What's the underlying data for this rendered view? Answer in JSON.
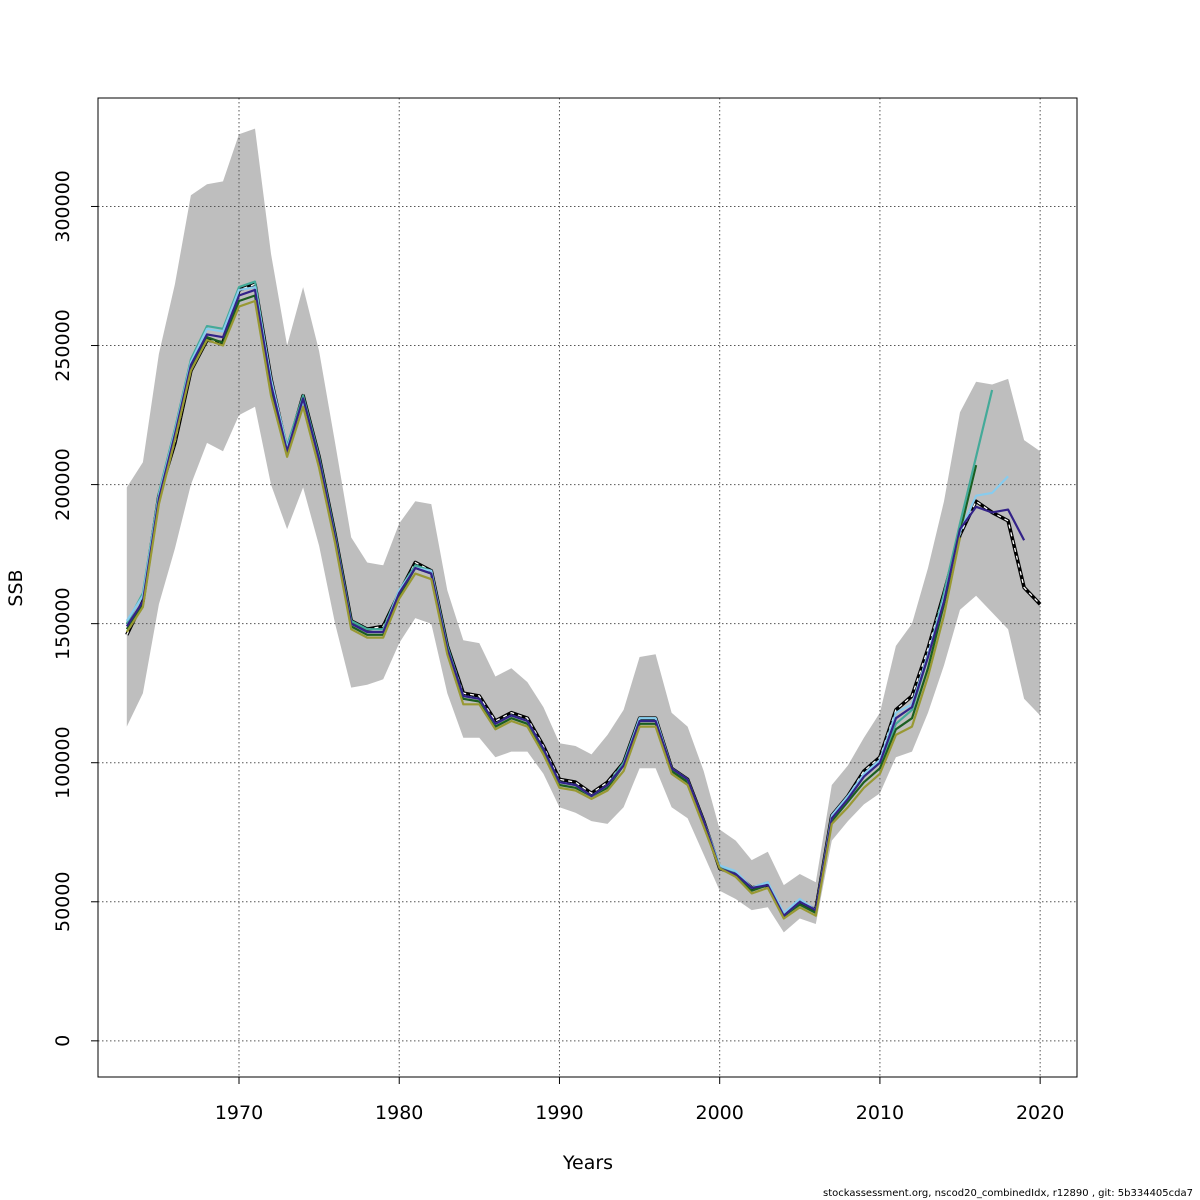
{
  "chart_data": {
    "type": "line",
    "title": "",
    "xlabel": "Years",
    "ylabel": "SSB",
    "xlim": [
      1961.2,
      2022.3
    ],
    "ylim": [
      -13000,
      339000
    ],
    "x_ticks": [
      1970,
      1980,
      1990,
      2000,
      2010,
      2020
    ],
    "y_ticks": [
      0,
      50000,
      100000,
      150000,
      200000,
      250000,
      300000
    ],
    "y_tick_labels": [
      "0",
      "50000",
      "100000",
      "150000",
      "200000",
      "250000",
      "300000"
    ],
    "grid": true,
    "legend": "none",
    "footer": "stockassessment.org, nscod20_combinedIdx, r12890 , git: 5b334405cda7",
    "band": {
      "color": "#bebebe",
      "x": [
        1963,
        1964,
        1965,
        1966,
        1967,
        1968,
        1969,
        1970,
        1971,
        1972,
        1973,
        1974,
        1975,
        1976,
        1977,
        1978,
        1979,
        1980,
        1981,
        1982,
        1983,
        1984,
        1985,
        1986,
        1987,
        1988,
        1989,
        1990,
        1991,
        1992,
        1993,
        1994,
        1995,
        1996,
        1997,
        1998,
        1999,
        2000,
        2001,
        2002,
        2003,
        2004,
        2005,
        2006,
        2007,
        2008,
        2009,
        2010,
        2011,
        2012,
        2013,
        2014,
        2015,
        2016,
        2017,
        2018,
        2019,
        2020
      ],
      "upper": [
        199000,
        208000,
        247000,
        272000,
        304000,
        308000,
        309000,
        326000,
        328000,
        283000,
        250000,
        271000,
        248000,
        215000,
        181000,
        172000,
        171000,
        186000,
        194000,
        193000,
        162000,
        144000,
        143000,
        131000,
        134000,
        129000,
        120000,
        107000,
        106000,
        103000,
        110000,
        119000,
        138000,
        139000,
        118000,
        113000,
        97000,
        76000,
        72000,
        65000,
        68000,
        56000,
        60000,
        57000,
        92000,
        99000,
        109000,
        118000,
        142000,
        150000,
        170000,
        194000,
        226000,
        237000,
        236000,
        238000,
        216000,
        212000
      ],
      "lower": [
        113000,
        125000,
        157000,
        177000,
        200000,
        215000,
        212000,
        225000,
        228000,
        200000,
        184000,
        199000,
        178000,
        150000,
        127000,
        128000,
        130000,
        143000,
        152000,
        150000,
        125000,
        109000,
        109000,
        102000,
        104000,
        104000,
        96000,
        84000,
        82000,
        79000,
        78000,
        84000,
        98000,
        98000,
        84000,
        80000,
        67000,
        54000,
        51000,
        47000,
        48000,
        39000,
        44000,
        42000,
        72000,
        79000,
        85000,
        89000,
        102000,
        104000,
        118000,
        135000,
        155000,
        160000,
        154000,
        148000,
        123000,
        117000
      ]
    },
    "series": [
      {
        "color": "#000000",
        "dashed": true,
        "width": 2.2,
        "x": [
          1963,
          1964,
          1965,
          1966,
          1967,
          1968,
          1969,
          1970,
          1971,
          1972,
          1973,
          1974,
          1975,
          1976,
          1977,
          1978,
          1979,
          1980,
          1981,
          1982,
          1983,
          1984,
          1985,
          1986,
          1987,
          1988,
          1989,
          1990,
          1991,
          1992,
          1993,
          1994,
          1995,
          1996,
          1997,
          1998,
          1999,
          2000,
          2001,
          2002,
          2003,
          2004,
          2005,
          2006,
          2007,
          2008,
          2009,
          2010,
          2011,
          2012,
          2013,
          2014,
          2015,
          2016,
          2017,
          2018,
          2019,
          2020
        ],
        "values": [
          146000,
          158000,
          196000,
          215000,
          241000,
          252000,
          251000,
          270000,
          272000,
          238000,
          212000,
          232000,
          210000,
          182000,
          151000,
          148000,
          149000,
          161000,
          172000,
          169000,
          142000,
          125000,
          124000,
          115000,
          118000,
          116000,
          106000,
          94000,
          93000,
          89000,
          93000,
          100000,
          116000,
          116000,
          98000,
          94000,
          79000,
          62000,
          60000,
          55000,
          56000,
          45000,
          50000,
          47000,
          81000,
          88000,
          97000,
          102000,
          119000,
          124000,
          141000,
          161000,
          182000,
          194000,
          190000,
          187000,
          163000,
          157000
        ]
      },
      {
        "color": "#1b5e20",
        "dashed": false,
        "width": 2.2,
        "x": [
          1963,
          1964,
          1965,
          1966,
          1967,
          1968,
          1969,
          1970,
          1971,
          1972,
          1973,
          1974,
          1975,
          1976,
          1977,
          1978,
          1979,
          1980,
          1981,
          1982,
          1983,
          1984,
          1985,
          1986,
          1987,
          1988,
          1989,
          1990,
          1991,
          1992,
          1993,
          1994,
          1995,
          1996,
          1997,
          1998,
          1999,
          2000,
          2001,
          2002,
          2003,
          2004,
          2005,
          2006,
          2007,
          2008,
          2009,
          2010,
          2011,
          2012,
          2013,
          2014,
          2015,
          2016
        ],
        "values": [
          148000,
          157000,
          194000,
          217000,
          242000,
          253000,
          251000,
          266000,
          268000,
          234000,
          211000,
          230000,
          208000,
          180000,
          149000,
          146000,
          146000,
          160000,
          170000,
          168000,
          141000,
          123000,
          122000,
          113000,
          116000,
          114000,
          104000,
          92000,
          91000,
          88000,
          91000,
          99000,
          114000,
          114000,
          97000,
          93000,
          78000,
          62000,
          60000,
          54000,
          56000,
          45000,
          49000,
          46000,
          79000,
          86000,
          93000,
          98000,
          112000,
          116000,
          134000,
          157000,
          183000,
          207000
        ]
      },
      {
        "color": "#44aa99",
        "dashed": false,
        "width": 2.2,
        "x": [
          1963,
          1964,
          1965,
          1966,
          1967,
          1968,
          1969,
          1970,
          1971,
          1972,
          1973,
          1974,
          1975,
          1976,
          1977,
          1978,
          1979,
          1980,
          1981,
          1982,
          1983,
          1984,
          1985,
          1986,
          1987,
          1988,
          1989,
          1990,
          1991,
          1992,
          1993,
          1994,
          1995,
          1996,
          1997,
          1998,
          1999,
          2000,
          2001,
          2002,
          2003,
          2004,
          2005,
          2006,
          2007,
          2008,
          2009,
          2010,
          2011,
          2012,
          2013,
          2014,
          2015,
          2016,
          2017
        ],
        "values": [
          150000,
          161000,
          197000,
          220000,
          245000,
          257000,
          256000,
          271000,
          273000,
          237000,
          214000,
          232000,
          210000,
          182000,
          151000,
          148000,
          148000,
          162000,
          171000,
          169000,
          142000,
          124000,
          123000,
          114000,
          117000,
          115000,
          105000,
          93000,
          92000,
          88000,
          92000,
          100000,
          116000,
          116000,
          98000,
          94000,
          79000,
          63000,
          60000,
          55000,
          57000,
          45000,
          50000,
          47000,
          80000,
          87000,
          95000,
          100000,
          114000,
          119000,
          138000,
          161000,
          186000,
          210000,
          234000
        ]
      },
      {
        "color": "#88ccee",
        "dashed": false,
        "width": 2.2,
        "x": [
          1963,
          1964,
          1965,
          1966,
          1967,
          1968,
          1969,
          1970,
          1971,
          1972,
          1973,
          1974,
          1975,
          1976,
          1977,
          1978,
          1979,
          1980,
          1981,
          1982,
          1983,
          1984,
          1985,
          1986,
          1987,
          1988,
          1989,
          1990,
          1991,
          1992,
          1993,
          1994,
          1995,
          1996,
          1997,
          1998,
          1999,
          2000,
          2001,
          2002,
          2003,
          2004,
          2005,
          2006,
          2007,
          2008,
          2009,
          2010,
          2011,
          2012,
          2013,
          2014,
          2015,
          2016,
          2017,
          2018
        ],
        "values": [
          151000,
          160000,
          196000,
          219000,
          244000,
          256000,
          255000,
          270000,
          271000,
          238000,
          213000,
          230000,
          209000,
          181000,
          150000,
          147000,
          147000,
          162000,
          170000,
          169000,
          141000,
          124000,
          123000,
          114000,
          117000,
          115000,
          105000,
          93000,
          92000,
          88000,
          92000,
          99000,
          116000,
          116000,
          98000,
          94000,
          79000,
          63000,
          61000,
          55000,
          57000,
          46000,
          51000,
          47000,
          81000,
          88000,
          96000,
          101000,
          118000,
          121000,
          139000,
          159000,
          183000,
          196000,
          197000,
          203000
        ]
      },
      {
        "color": "#332288",
        "dashed": false,
        "width": 2.2,
        "x": [
          1963,
          1964,
          1965,
          1966,
          1967,
          1968,
          1969,
          1970,
          1971,
          1972,
          1973,
          1974,
          1975,
          1976,
          1977,
          1978,
          1979,
          1980,
          1981,
          1982,
          1983,
          1984,
          1985,
          1986,
          1987,
          1988,
          1989,
          1990,
          1991,
          1992,
          1993,
          1994,
          1995,
          1996,
          1997,
          1998,
          1999,
          2000,
          2001,
          2002,
          2003,
          2004,
          2005,
          2006,
          2007,
          2008,
          2009,
          2010,
          2011,
          2012,
          2013,
          2014,
          2015,
          2016,
          2017,
          2018,
          2019
        ],
        "values": [
          149000,
          158000,
          195000,
          218000,
          243000,
          254000,
          253000,
          268000,
          270000,
          236000,
          212000,
          231000,
          209000,
          181000,
          150000,
          147000,
          147000,
          161000,
          170000,
          168000,
          141000,
          124000,
          123000,
          114000,
          117000,
          115000,
          105000,
          93000,
          92000,
          88000,
          92000,
          99000,
          115000,
          115000,
          98000,
          94000,
          79000,
          62000,
          60000,
          55000,
          56000,
          45000,
          50000,
          47000,
          80000,
          87000,
          95000,
          100000,
          116000,
          120000,
          138000,
          158000,
          184000,
          192000,
          190000,
          191000,
          180000
        ]
      },
      {
        "color": "#999933",
        "dashed": false,
        "width": 2.2,
        "x": [
          1963,
          1964,
          1965,
          1966,
          1967,
          1968,
          1969,
          1970,
          1971,
          1972,
          1973,
          1974,
          1975,
          1976,
          1977,
          1978,
          1979,
          1980,
          1981,
          1982,
          1983,
          1984,
          1985,
          1986,
          1987,
          1988,
          1989,
          1990,
          1991,
          1992,
          1993,
          1994,
          1995,
          1996,
          1997,
          1998,
          1999,
          2000,
          2001,
          2002,
          2003,
          2004,
          2005,
          2006,
          2007,
          2008,
          2009,
          2010,
          2011,
          2012,
          2013,
          2014,
          2015
        ],
        "values": [
          147000,
          156000,
          193000,
          216000,
          241000,
          252000,
          250000,
          264000,
          266000,
          232000,
          210000,
          228000,
          206000,
          179000,
          148000,
          145000,
          145000,
          159000,
          168000,
          166000,
          139000,
          121000,
          121000,
          112000,
          115000,
          113000,
          103000,
          91000,
          90000,
          87000,
          90000,
          97000,
          113000,
          113000,
          96000,
          92000,
          77000,
          62000,
          59000,
          53000,
          55000,
          44000,
          48000,
          45000,
          78000,
          84000,
          91000,
          96000,
          110000,
          113000,
          131000,
          153000,
          181000
        ]
      }
    ]
  }
}
